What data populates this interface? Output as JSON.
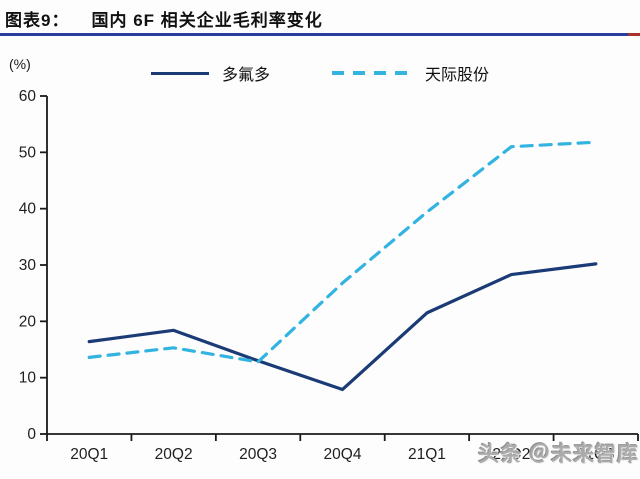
{
  "header": {
    "label": "图表9：",
    "title": "国内 6F 相关企业毛利率变化"
  },
  "y_axis_unit": "(%)",
  "watermark": "头条 ＠未来智库",
  "colors": {
    "series_dofluoride": "#1b3b76",
    "series_tianji": "#33b3e0",
    "underline": "#2a3f9d",
    "underline_tip": "#a8322c",
    "axis": "#1a1a1a"
  },
  "legend": {
    "items": [
      {
        "name": "多氟多",
        "style": "solid",
        "color": "#1b3b76"
      },
      {
        "name": "天际股份",
        "style": "dashed",
        "color": "#33b3e0"
      }
    ]
  },
  "chart_data": {
    "type": "line",
    "title": "国内 6F 相关企业毛利率变化",
    "ylabel": "(%)",
    "xlabel": "",
    "categories": [
      "20Q1",
      "20Q2",
      "20Q3",
      "20Q4",
      "21Q1",
      "21Q2",
      "21Q3"
    ],
    "series": [
      {
        "name": "多氟多",
        "color": "#1b3b76",
        "dash": "",
        "values": [
          16.4,
          18.4,
          13.0,
          7.9,
          21.5,
          28.3,
          30.2
        ]
      },
      {
        "name": "天际股份",
        "color": "#33b3e0",
        "dash": "11 8",
        "values": [
          13.6,
          15.3,
          12.8,
          26.8,
          39.4,
          51.0,
          51.8
        ]
      }
    ],
    "ylim": [
      0,
      60
    ],
    "yticks": [
      0,
      10,
      20,
      30,
      40,
      50,
      60
    ],
    "grid": false,
    "legend_position": "top"
  }
}
